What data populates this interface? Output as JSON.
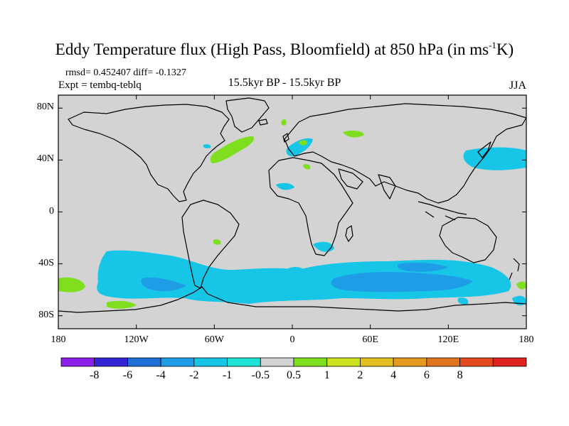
{
  "title": {
    "main": "Eddy Temperature flux (High Pass, Bloomfield) at 850 hPa (in ms",
    "sup": "-1",
    "tail": "K)"
  },
  "stats_line": "rmsd= 0.452407 diff= -0.1327",
  "expt_line": "Expt = tembq-teblq",
  "period": "15.5kyr BP - 15.5kyr BP",
  "season": "JJA",
  "map": {
    "projection": "cylindrical equidistant",
    "lon_range": [
      -180,
      180
    ],
    "lat_range": [
      -90,
      90
    ],
    "land_color": "#d3d3d3",
    "coastline_color": "#000000",
    "y_ticks": [
      {
        "lat": 80,
        "label": "80N"
      },
      {
        "lat": 40,
        "label": "40N"
      },
      {
        "lat": 0,
        "label": "0"
      },
      {
        "lat": -40,
        "label": "40S"
      },
      {
        "lat": -80,
        "label": "80S"
      }
    ],
    "x_ticks": [
      {
        "lon": -180,
        "label": "180"
      },
      {
        "lon": -120,
        "label": "120W"
      },
      {
        "lon": -60,
        "label": "60W"
      },
      {
        "lon": 0,
        "label": "0"
      },
      {
        "lon": 60,
        "label": "60E"
      },
      {
        "lon": 120,
        "label": "120E"
      },
      {
        "lon": 180,
        "label": "180"
      }
    ]
  },
  "colorbar": {
    "colors": [
      "#8b1ee8",
      "#3523d6",
      "#1e6fd8",
      "#1e9de6",
      "#17c6e6",
      "#1ee3d6",
      "#d3d3d3",
      "#7fde1e",
      "#cde21e",
      "#e2be1e",
      "#e49a1e",
      "#e2741e",
      "#e24a1e",
      "#de221e"
    ],
    "labels": [
      "-8",
      "-6",
      "-4",
      "-2",
      "-1",
      "-0.5",
      "0.5",
      "1",
      "2",
      "4",
      "6",
      "8"
    ]
  },
  "colors": {
    "cyan": "#17c6e6",
    "cyan_light": "#1ee3d6",
    "blue": "#1e9de6",
    "green": "#7fde1e"
  }
}
